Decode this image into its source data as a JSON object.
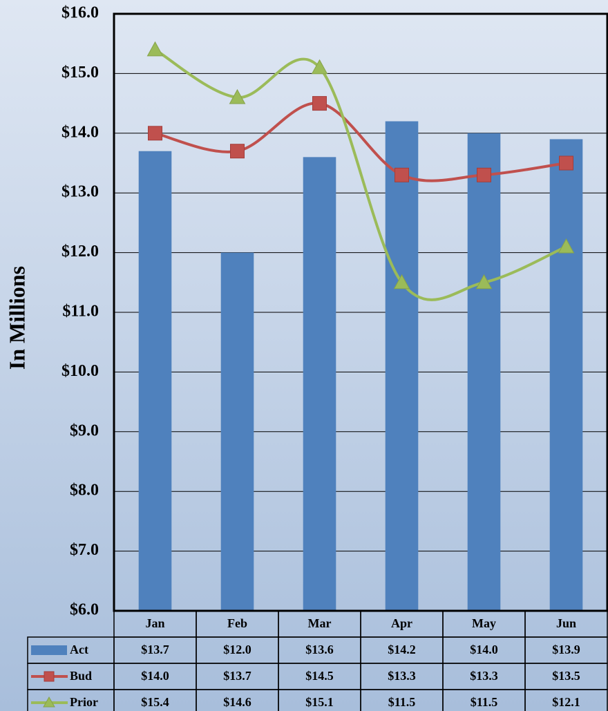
{
  "chart_data": {
    "type": "bar-line",
    "y_label": "In Millions",
    "categories": [
      "Jan",
      "Feb",
      "Mar",
      "Apr",
      "May",
      "Jun"
    ],
    "series": [
      {
        "name": "Act",
        "type": "bar",
        "color": "#4f81bd",
        "values": [
          13.7,
          12.0,
          13.6,
          14.2,
          14.0,
          13.9
        ],
        "value_labels": [
          "$13.7",
          "$12.0",
          "$13.6",
          "$14.2",
          "$14.0",
          "$13.9"
        ]
      },
      {
        "name": "Bud",
        "type": "line",
        "marker": "square",
        "color": "#c0504d",
        "values": [
          14.0,
          13.7,
          14.5,
          13.3,
          13.3,
          13.5
        ],
        "value_labels": [
          "$14.0",
          "$13.7",
          "$14.5",
          "$13.3",
          "$13.3",
          "$13.5"
        ]
      },
      {
        "name": "Prior",
        "type": "line",
        "marker": "triangle",
        "color": "#9bbb59",
        "values": [
          15.4,
          14.6,
          15.1,
          11.5,
          11.5,
          12.1
        ],
        "value_labels": [
          "$15.4",
          "$14.6",
          "$15.1",
          "$11.5",
          "$11.5",
          "$12.1"
        ]
      }
    ],
    "ylim": [
      6,
      16
    ],
    "yticks": [
      {
        "value": 6,
        "label": "$6.0"
      },
      {
        "value": 7,
        "label": "$7.0"
      },
      {
        "value": 8,
        "label": "$8.0"
      },
      {
        "value": 9,
        "label": "$9.0"
      },
      {
        "value": 10,
        "label": "$10.0"
      },
      {
        "value": 11,
        "label": "$11.0"
      },
      {
        "value": 12,
        "label": "$12.0"
      },
      {
        "value": 13,
        "label": "$13.0"
      },
      {
        "value": 14,
        "label": "$14.0"
      },
      {
        "value": 15,
        "label": "$15.0"
      },
      {
        "value": 16,
        "label": "$16.0"
      }
    ],
    "grid": true,
    "smooth": true
  }
}
